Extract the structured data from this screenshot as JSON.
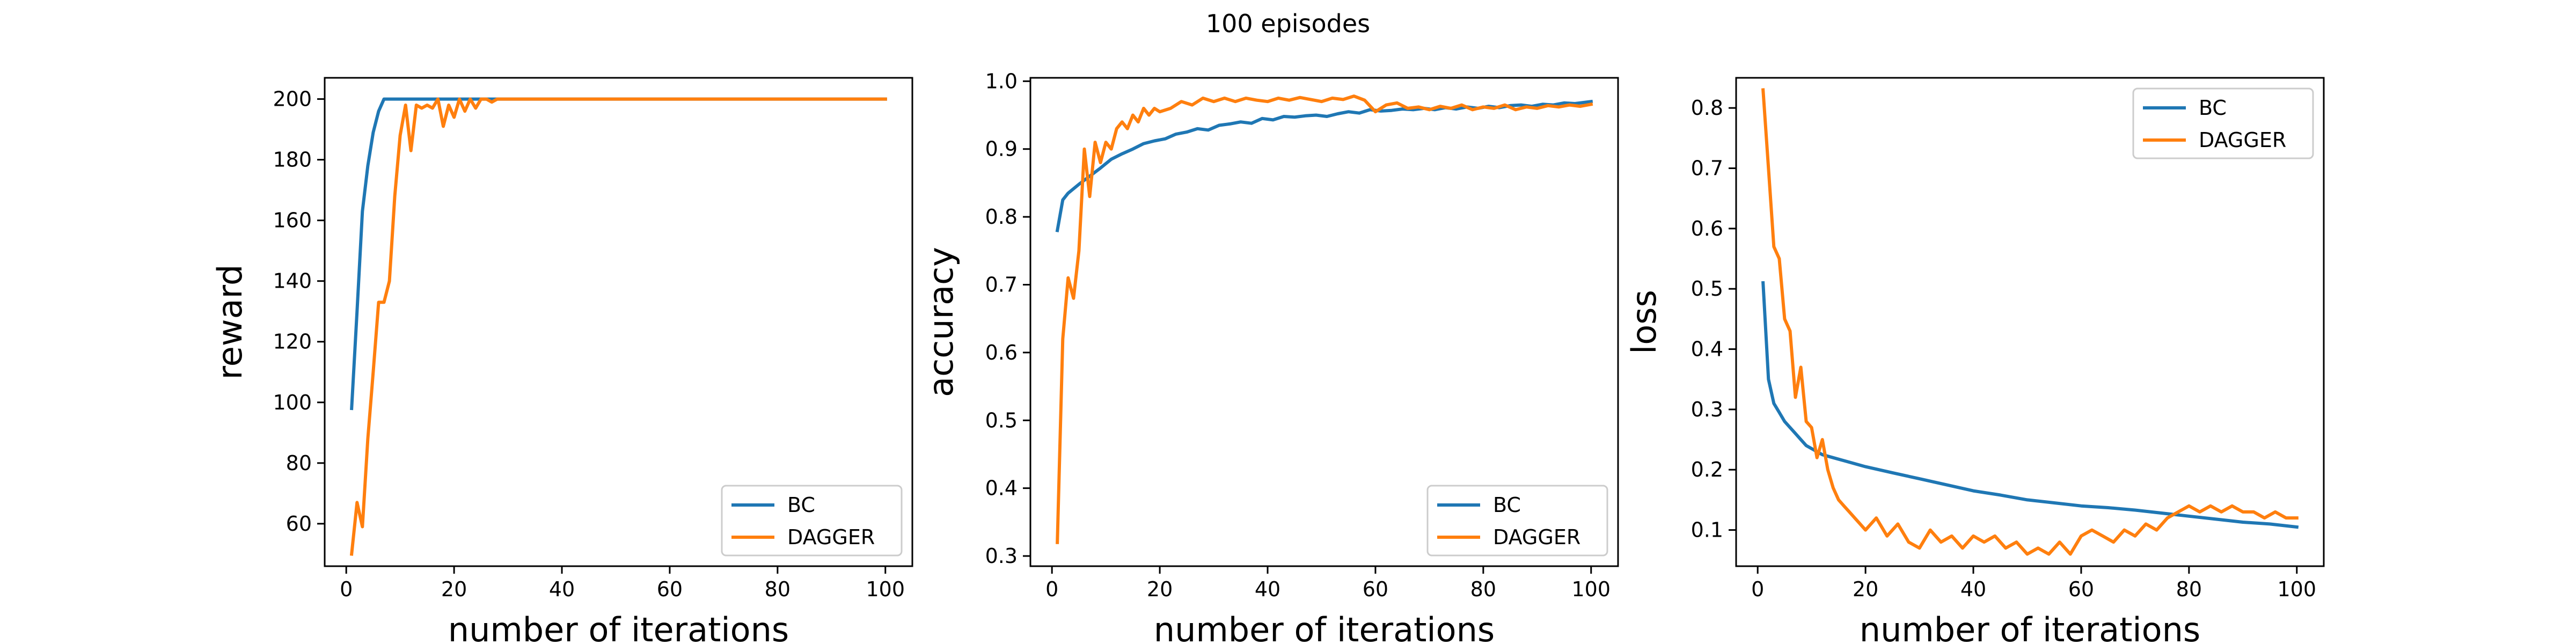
{
  "figure": {
    "suptitle": "100 episodes"
  },
  "chart_data": [
    {
      "type": "line",
      "title": "",
      "xlabel": "number of iterations",
      "ylabel": "reward",
      "xlim": [
        -4,
        105
      ],
      "ylim": [
        46,
        207
      ],
      "xticks": [
        0,
        20,
        40,
        60,
        80,
        100
      ],
      "yticks": [
        60,
        80,
        100,
        120,
        140,
        160,
        180,
        200
      ],
      "legend": "lower-right",
      "grid": false,
      "series": [
        {
          "name": "BC",
          "color": "#1f77b4",
          "x": [
            1,
            2,
            3,
            4,
            5,
            6,
            7,
            8,
            10,
            15,
            20,
            30,
            40,
            60,
            80,
            100
          ],
          "y": [
            98,
            130,
            163,
            178,
            189,
            196,
            200,
            200,
            200,
            200,
            200,
            200,
            200,
            200,
            200,
            200
          ]
        },
        {
          "name": "DAGGER",
          "color": "#ff7f0e",
          "x": [
            1,
            2,
            3,
            4,
            5,
            6,
            7,
            8,
            9,
            10,
            11,
            12,
            13,
            14,
            15,
            16,
            17,
            18,
            19,
            20,
            21,
            22,
            23,
            24,
            25,
            26,
            27,
            28,
            30,
            40,
            60,
            80,
            100
          ],
          "y": [
            50,
            67,
            59,
            88,
            110,
            133,
            133,
            140,
            168,
            188,
            198,
            183,
            198,
            197,
            198,
            197,
            200,
            191,
            198,
            194,
            200,
            196,
            200,
            197,
            200,
            200,
            199,
            200,
            200,
            200,
            200,
            200,
            200
          ]
        }
      ]
    },
    {
      "type": "line",
      "title": "",
      "xlabel": "number of iterations",
      "ylabel": "accuracy",
      "xlim": [
        -4,
        105
      ],
      "ylim": [
        0.285,
        1.005
      ],
      "xticks": [
        0,
        20,
        40,
        60,
        80,
        100
      ],
      "yticks": [
        0.3,
        0.4,
        0.5,
        0.6,
        0.7,
        0.8,
        0.9,
        1.0
      ],
      "yticklabels": [
        "0.3",
        "0.4",
        "0.5",
        "0.6",
        "0.7",
        "0.8",
        "0.9",
        "1.0"
      ],
      "legend": "lower-right",
      "grid": false,
      "series": [
        {
          "name": "BC",
          "color": "#1f77b4",
          "x": [
            1,
            2,
            3,
            5,
            7,
            9,
            11,
            13,
            15,
            17,
            19,
            21,
            23,
            25,
            27,
            29,
            31,
            33,
            35,
            37,
            39,
            41,
            43,
            45,
            47,
            49,
            51,
            53,
            55,
            57,
            59,
            61,
            63,
            65,
            67,
            69,
            71,
            73,
            75,
            77,
            79,
            81,
            83,
            85,
            87,
            89,
            91,
            93,
            95,
            97,
            100
          ],
          "y": [
            0.78,
            0.825,
            0.835,
            0.848,
            0.86,
            0.872,
            0.885,
            0.893,
            0.9,
            0.908,
            0.912,
            0.915,
            0.922,
            0.925,
            0.93,
            0.928,
            0.935,
            0.937,
            0.94,
            0.938,
            0.945,
            0.943,
            0.948,
            0.947,
            0.949,
            0.95,
            0.948,
            0.952,
            0.955,
            0.953,
            0.958,
            0.956,
            0.957,
            0.959,
            0.958,
            0.96,
            0.958,
            0.961,
            0.959,
            0.962,
            0.96,
            0.963,
            0.961,
            0.964,
            0.965,
            0.963,
            0.966,
            0.965,
            0.968,
            0.967,
            0.97
          ]
        },
        {
          "name": "DAGGER",
          "color": "#ff7f0e",
          "x": [
            1,
            2,
            3,
            4,
            5,
            6,
            7,
            8,
            9,
            10,
            11,
            12,
            13,
            14,
            15,
            16,
            17,
            18,
            19,
            20,
            22,
            24,
            26,
            28,
            30,
            32,
            34,
            36,
            38,
            40,
            42,
            44,
            46,
            48,
            50,
            52,
            54,
            56,
            58,
            60,
            62,
            64,
            66,
            68,
            70,
            72,
            74,
            76,
            78,
            80,
            82,
            84,
            86,
            88,
            90,
            92,
            94,
            96,
            98,
            100
          ],
          "y": [
            0.32,
            0.62,
            0.71,
            0.68,
            0.75,
            0.9,
            0.83,
            0.91,
            0.88,
            0.91,
            0.9,
            0.93,
            0.94,
            0.93,
            0.95,
            0.94,
            0.96,
            0.95,
            0.96,
            0.955,
            0.96,
            0.97,
            0.965,
            0.975,
            0.97,
            0.975,
            0.97,
            0.975,
            0.972,
            0.97,
            0.975,
            0.972,
            0.976,
            0.973,
            0.97,
            0.975,
            0.973,
            0.978,
            0.972,
            0.955,
            0.965,
            0.968,
            0.96,
            0.962,
            0.958,
            0.963,
            0.96,
            0.965,
            0.958,
            0.962,
            0.96,
            0.965,
            0.958,
            0.962,
            0.96,
            0.964,
            0.962,
            0.965,
            0.963,
            0.966
          ]
        }
      ]
    },
    {
      "type": "line",
      "title": "",
      "xlabel": "number of iterations",
      "ylabel": "loss",
      "xlim": [
        -4,
        105
      ],
      "ylim": [
        0.04,
        0.85
      ],
      "xticks": [
        0,
        20,
        40,
        60,
        80,
        100
      ],
      "yticks": [
        0.1,
        0.2,
        0.3,
        0.4,
        0.5,
        0.6,
        0.7,
        0.8
      ],
      "legend": "upper-right",
      "grid": false,
      "series": [
        {
          "name": "BC",
          "color": "#1f77b4",
          "x": [
            1,
            2,
            3,
            4,
            5,
            6,
            7,
            8,
            9,
            10,
            12,
            14,
            16,
            18,
            20,
            25,
            30,
            35,
            40,
            45,
            50,
            55,
            60,
            65,
            70,
            75,
            80,
            85,
            90,
            95,
            100
          ],
          "y": [
            0.51,
            0.35,
            0.31,
            0.295,
            0.28,
            0.27,
            0.26,
            0.25,
            0.24,
            0.235,
            0.225,
            0.22,
            0.215,
            0.21,
            0.205,
            0.195,
            0.185,
            0.175,
            0.165,
            0.158,
            0.15,
            0.145,
            0.14,
            0.137,
            0.133,
            0.128,
            0.123,
            0.118,
            0.113,
            0.11,
            0.105
          ]
        },
        {
          "name": "DAGGER",
          "color": "#ff7f0e",
          "x": [
            1,
            2,
            3,
            4,
            5,
            6,
            7,
            8,
            9,
            10,
            11,
            12,
            13,
            14,
            15,
            16,
            17,
            18,
            19,
            20,
            22,
            24,
            26,
            28,
            30,
            32,
            34,
            36,
            38,
            40,
            42,
            44,
            46,
            48,
            50,
            52,
            54,
            56,
            58,
            60,
            62,
            64,
            66,
            68,
            70,
            72,
            74,
            76,
            78,
            80,
            82,
            84,
            86,
            88,
            90,
            92,
            94,
            96,
            98,
            100
          ],
          "y": [
            0.83,
            0.7,
            0.57,
            0.55,
            0.45,
            0.43,
            0.32,
            0.37,
            0.28,
            0.27,
            0.22,
            0.25,
            0.2,
            0.17,
            0.15,
            0.14,
            0.13,
            0.12,
            0.11,
            0.1,
            0.12,
            0.09,
            0.11,
            0.08,
            0.07,
            0.1,
            0.08,
            0.09,
            0.07,
            0.09,
            0.08,
            0.09,
            0.07,
            0.08,
            0.06,
            0.07,
            0.06,
            0.08,
            0.06,
            0.09,
            0.1,
            0.09,
            0.08,
            0.1,
            0.09,
            0.11,
            0.1,
            0.12,
            0.13,
            0.14,
            0.13,
            0.14,
            0.13,
            0.14,
            0.13,
            0.13,
            0.12,
            0.13,
            0.12,
            0.12
          ]
        }
      ]
    }
  ]
}
